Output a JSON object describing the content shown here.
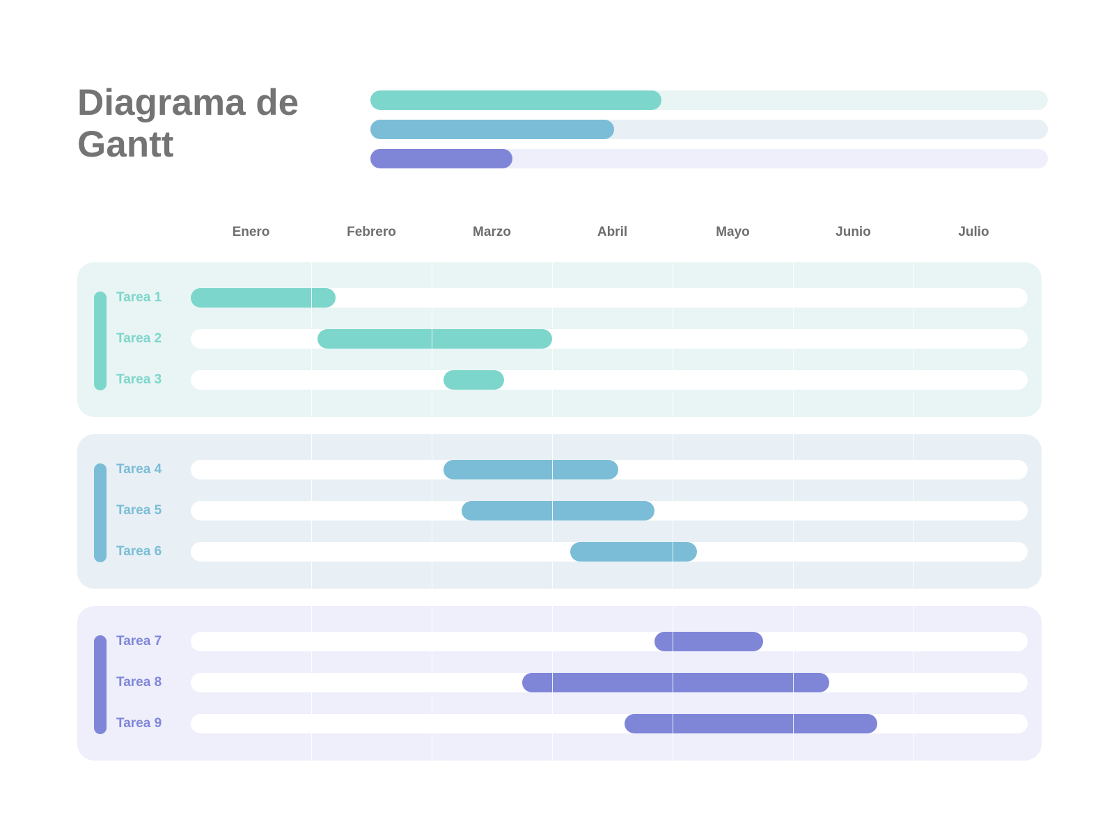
{
  "title": "Diagrama de Gantt",
  "colors": {
    "group1": "#7dd6cb",
    "group1_bg": "#e8f5f4",
    "group2": "#7bbdd6",
    "group2_bg": "#e8f0f5",
    "group3": "#7f86d8",
    "group3_bg": "#eeeffb"
  },
  "summary": [
    {
      "progress": 0.43,
      "color": "#7dd6cb",
      "track": "#e8f5f4"
    },
    {
      "progress": 0.36,
      "color": "#7bbdd6",
      "track": "#e8f0f5"
    },
    {
      "progress": 0.21,
      "color": "#7f86d8",
      "track": "#eeeffb"
    }
  ],
  "chart_data": {
    "type": "gantt",
    "title": "Diagrama de Gantt",
    "months": [
      "Enero",
      "Febrero",
      "Marzo",
      "Abril",
      "Mayo",
      "Junio",
      "Julio"
    ],
    "x_range_months": [
      0,
      7
    ],
    "groups": [
      {
        "color": "#7dd6cb",
        "tasks": [
          {
            "name": "Tarea 1",
            "start": 0.0,
            "end": 1.2
          },
          {
            "name": "Tarea 2",
            "start": 1.05,
            "end": 3.0
          },
          {
            "name": "Tarea 3",
            "start": 2.1,
            "end": 2.6
          }
        ]
      },
      {
        "color": "#7bbdd6",
        "tasks": [
          {
            "name": "Tarea 4",
            "start": 2.1,
            "end": 3.55
          },
          {
            "name": "Tarea 5",
            "start": 2.25,
            "end": 3.85
          },
          {
            "name": "Tarea 6",
            "start": 3.15,
            "end": 4.2
          }
        ]
      },
      {
        "color": "#7f86d8",
        "tasks": [
          {
            "name": "Tarea 7",
            "start": 3.85,
            "end": 4.75
          },
          {
            "name": "Tarea 8",
            "start": 2.75,
            "end": 5.3
          },
          {
            "name": "Tarea 9",
            "start": 3.6,
            "end": 5.7
          }
        ]
      }
    ]
  }
}
